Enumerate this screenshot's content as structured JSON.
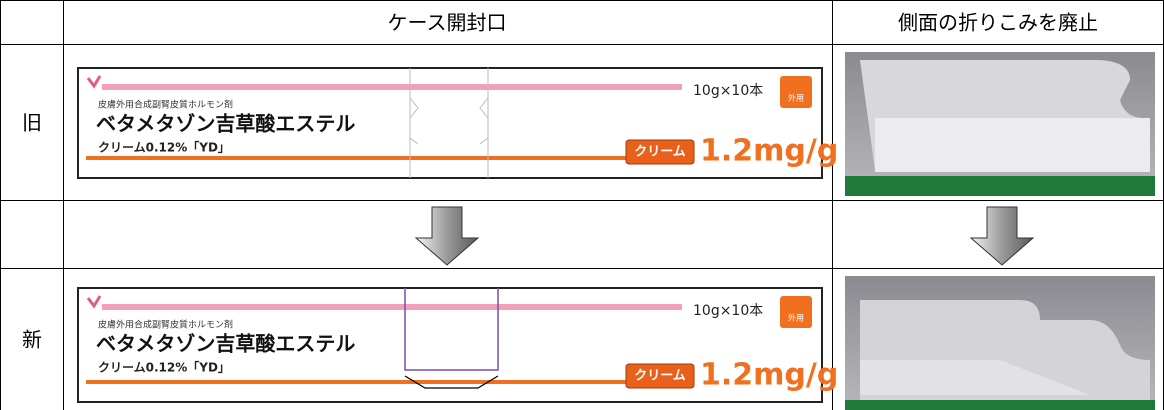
{
  "table": {
    "header": [
      "ケース開封口",
      "側面の折りこみを廃止"
    ],
    "rows": [
      {
        "label": "旧"
      },
      {
        "label": "新"
      }
    ]
  },
  "package": {
    "category": "皮膚外用合成副腎皮質ホルモン剤",
    "name": "ベタメタゾン吉草酸エステル",
    "strength": "クリーム0.12%「YD」",
    "quantity": "10g×10本",
    "route": "外用",
    "form": "クリーム",
    "concentration": "1.2mg/g"
  }
}
